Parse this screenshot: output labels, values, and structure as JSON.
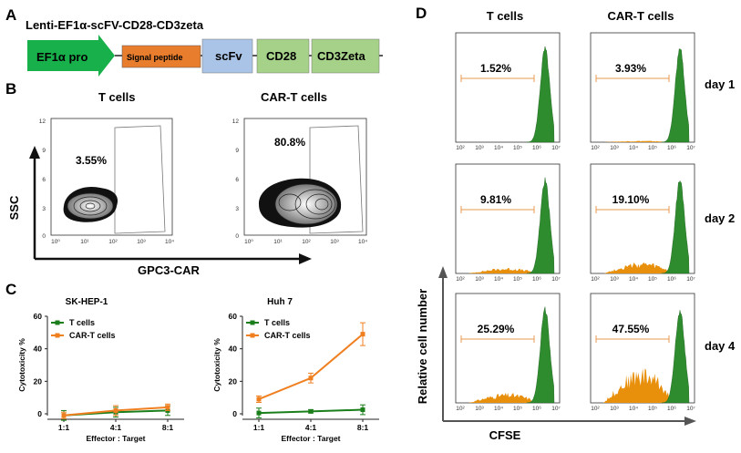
{
  "panels": {
    "A": {
      "letter": "A",
      "construct_title": "Lenti-EF1α-scFV-CD28-CD3zeta",
      "elements": [
        "EF1α pro",
        "Signal peptide",
        "scFv",
        "CD28",
        "CD3Zeta"
      ]
    },
    "B": {
      "letter": "B",
      "col_titles": [
        "T cells",
        "CAR-T cells"
      ],
      "percentages": [
        "3.55%",
        "80.8%"
      ],
      "y_axis_label": "SSC",
      "x_axis_label": "GPC3-CAR",
      "x_ticks": [
        "10⁰",
        "10¹",
        "10²",
        "10³",
        "10⁴"
      ],
      "y_ticks": [
        "0",
        "3",
        "6",
        "9",
        "12"
      ]
    },
    "C": {
      "letter": "C",
      "y_axis_label": "Cytotoxicity %",
      "x_axis_label": "Effector : Target"
    },
    "D": {
      "letter": "D",
      "col_titles": [
        "T cells",
        "CAR-T cells"
      ],
      "row_labels": [
        "day 1",
        "day 2",
        "day 4"
      ],
      "percentages": [
        [
          "1.52%",
          "3.93%"
        ],
        [
          "9.81%",
          "19.10%"
        ],
        [
          "25.29%",
          "47.55%"
        ]
      ],
      "y_axis_label": "Relative cell number",
      "x_axis_label": "CFSE",
      "x_ticks": [
        "10²",
        "10³",
        "10⁴",
        "10⁵",
        "10⁶",
        "10⁷"
      ]
    }
  },
  "colors": {
    "ef1a": "#18b04a",
    "signal_peptide": "#e87d2e",
    "scfv": "#a9c4e6",
    "cd28": "#a6d189",
    "cd3zeta": "#a6d189",
    "t_cells_line": "#1a7f1a",
    "cart_line": "#f07f20",
    "histo_green": "#2e8b2e",
    "histo_orange": "#e8900c"
  },
  "chart_data": [
    {
      "type": "line",
      "title": "SK-HEP-1",
      "categories": [
        "1:1",
        "4:1",
        "8:1"
      ],
      "series": [
        {
          "name": "T cells",
          "values": [
            -1,
            1,
            2
          ],
          "errors": [
            3,
            3,
            3
          ]
        },
        {
          "name": "CAR-T cells",
          "values": [
            -1,
            2,
            4
          ],
          "errors": [
            2,
            3,
            2
          ]
        }
      ],
      "ylim": [
        0,
        60
      ],
      "yticks": [
        0,
        20,
        40,
        60
      ],
      "ylabel": "Cytotoxicity %",
      "xlabel": "Effector : Target"
    },
    {
      "type": "line",
      "title": "Huh 7",
      "categories": [
        "1:1",
        "4:1",
        "8:1"
      ],
      "series": [
        {
          "name": "T cells",
          "values": [
            0.5,
            1.5,
            2.5
          ],
          "errors": [
            3,
            1,
            3
          ]
        },
        {
          "name": "CAR-T cells",
          "values": [
            9,
            22,
            49
          ],
          "errors": [
            2,
            3,
            7
          ]
        }
      ],
      "ylim": [
        0,
        60
      ],
      "yticks": [
        0,
        20,
        40,
        60
      ],
      "ylabel": "Cytotoxicity %",
      "xlabel": "Effector : Target"
    }
  ]
}
